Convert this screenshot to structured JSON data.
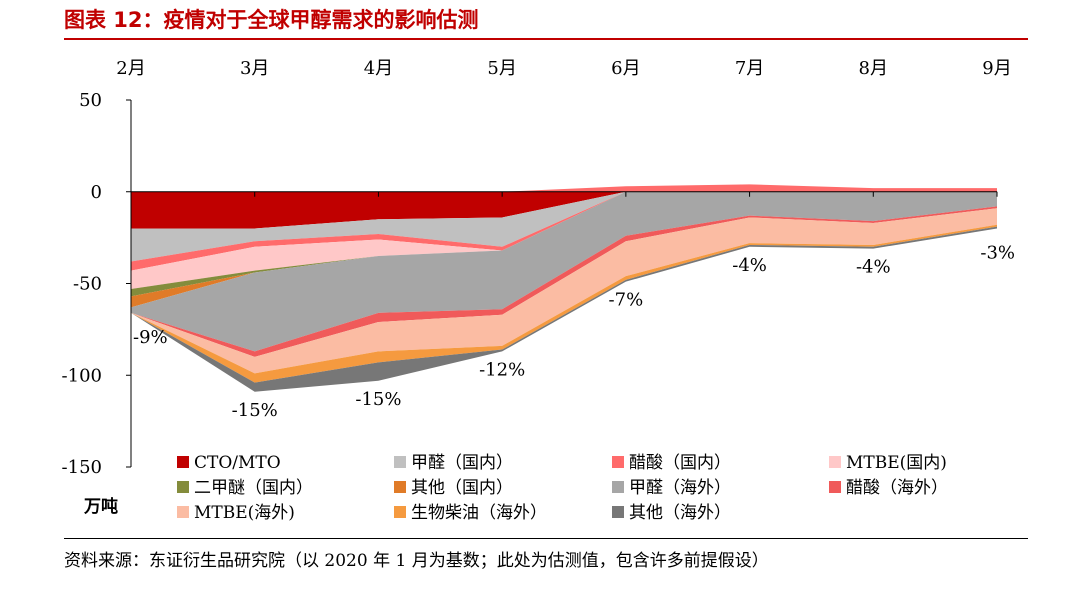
{
  "figure": {
    "title": "图表 12：疫情对于全球甲醇需求的影响估测",
    "source": "资料来源：东证衍生品研究院（以 2020 年 1 月为基数；此处为估测值，包含许多前提假设）"
  },
  "chart_data": {
    "type": "area",
    "categories": [
      "2月",
      "3月",
      "4月",
      "5月",
      "6月",
      "7月",
      "8月",
      "9月"
    ],
    "y_ticks": [
      "50",
      "0",
      "-50",
      "-100",
      "-150"
    ],
    "ylim": [
      -150,
      50
    ],
    "unit_label": "万吨",
    "grid": false,
    "legend_position": "bottom",
    "series": [
      {
        "name": "CTO/MTO",
        "color": "#c00000",
        "values": [
          -20,
          -20,
          -15,
          -14,
          0,
          0,
          0,
          0
        ]
      },
      {
        "name": "甲醛（国内）",
        "color": "#c0c0c0",
        "values": [
          -18,
          -7,
          -8,
          -16,
          0,
          0,
          0,
          0
        ]
      },
      {
        "name": "醋酸（国内）",
        "color": "#ff6b6b",
        "values": [
          -5,
          -3,
          -3,
          -2,
          0,
          0,
          0,
          0
        ]
      },
      {
        "name": "MTBE(国内)",
        "color": "#ffc8c8",
        "values": [
          -10,
          -13,
          -9,
          0,
          0,
          0,
          0,
          0
        ]
      },
      {
        "name": "二甲醚（国内）",
        "color": "#848c3c",
        "values": [
          -4,
          -1,
          0,
          0,
          0,
          0,
          0,
          0
        ]
      },
      {
        "name": "其他（国内）",
        "color": "#e07b28",
        "values": [
          -6,
          0,
          0,
          0,
          0,
          0,
          0,
          0
        ]
      },
      {
        "name": "甲醛（海外）",
        "color": "#a6a6a6",
        "values": [
          -3,
          -43,
          -31,
          -32,
          -24,
          -13,
          -16,
          -8
        ]
      },
      {
        "name": "醋酸（海外）",
        "color": "#f05a5a",
        "values": [
          0,
          -3,
          -5,
          -3,
          -3,
          -1,
          -1,
          -1
        ]
      },
      {
        "name": "MTBE(海外)",
        "color": "#fbbca3",
        "values": [
          0,
          -9,
          -16,
          -17,
          -19,
          -14,
          -12,
          -9
        ]
      },
      {
        "name": "生物柴油（海外）",
        "color": "#f59a3f",
        "values": [
          0,
          -5,
          -6,
          -2,
          -2,
          -1,
          -1,
          -1
        ]
      },
      {
        "name": "其他（海外）",
        "color": "#777777",
        "values": [
          0,
          -5,
          -10,
          -1,
          -1,
          -1,
          -1,
          -1
        ]
      }
    ],
    "positive_band": [
      0,
      0,
      0,
      0,
      3,
      4,
      2,
      2
    ],
    "annotations": [
      {
        "text": "-9%",
        "x": "2月"
      },
      {
        "text": "-15%",
        "x": "3月"
      },
      {
        "text": "-15%",
        "x": "4月"
      },
      {
        "text": "-12%",
        "x": "5月"
      },
      {
        "text": "-7%",
        "x": "6月"
      },
      {
        "text": "-4%",
        "x": "7月"
      },
      {
        "text": "-4%",
        "x": "8月"
      },
      {
        "text": "-3%",
        "x": "9月"
      }
    ]
  }
}
